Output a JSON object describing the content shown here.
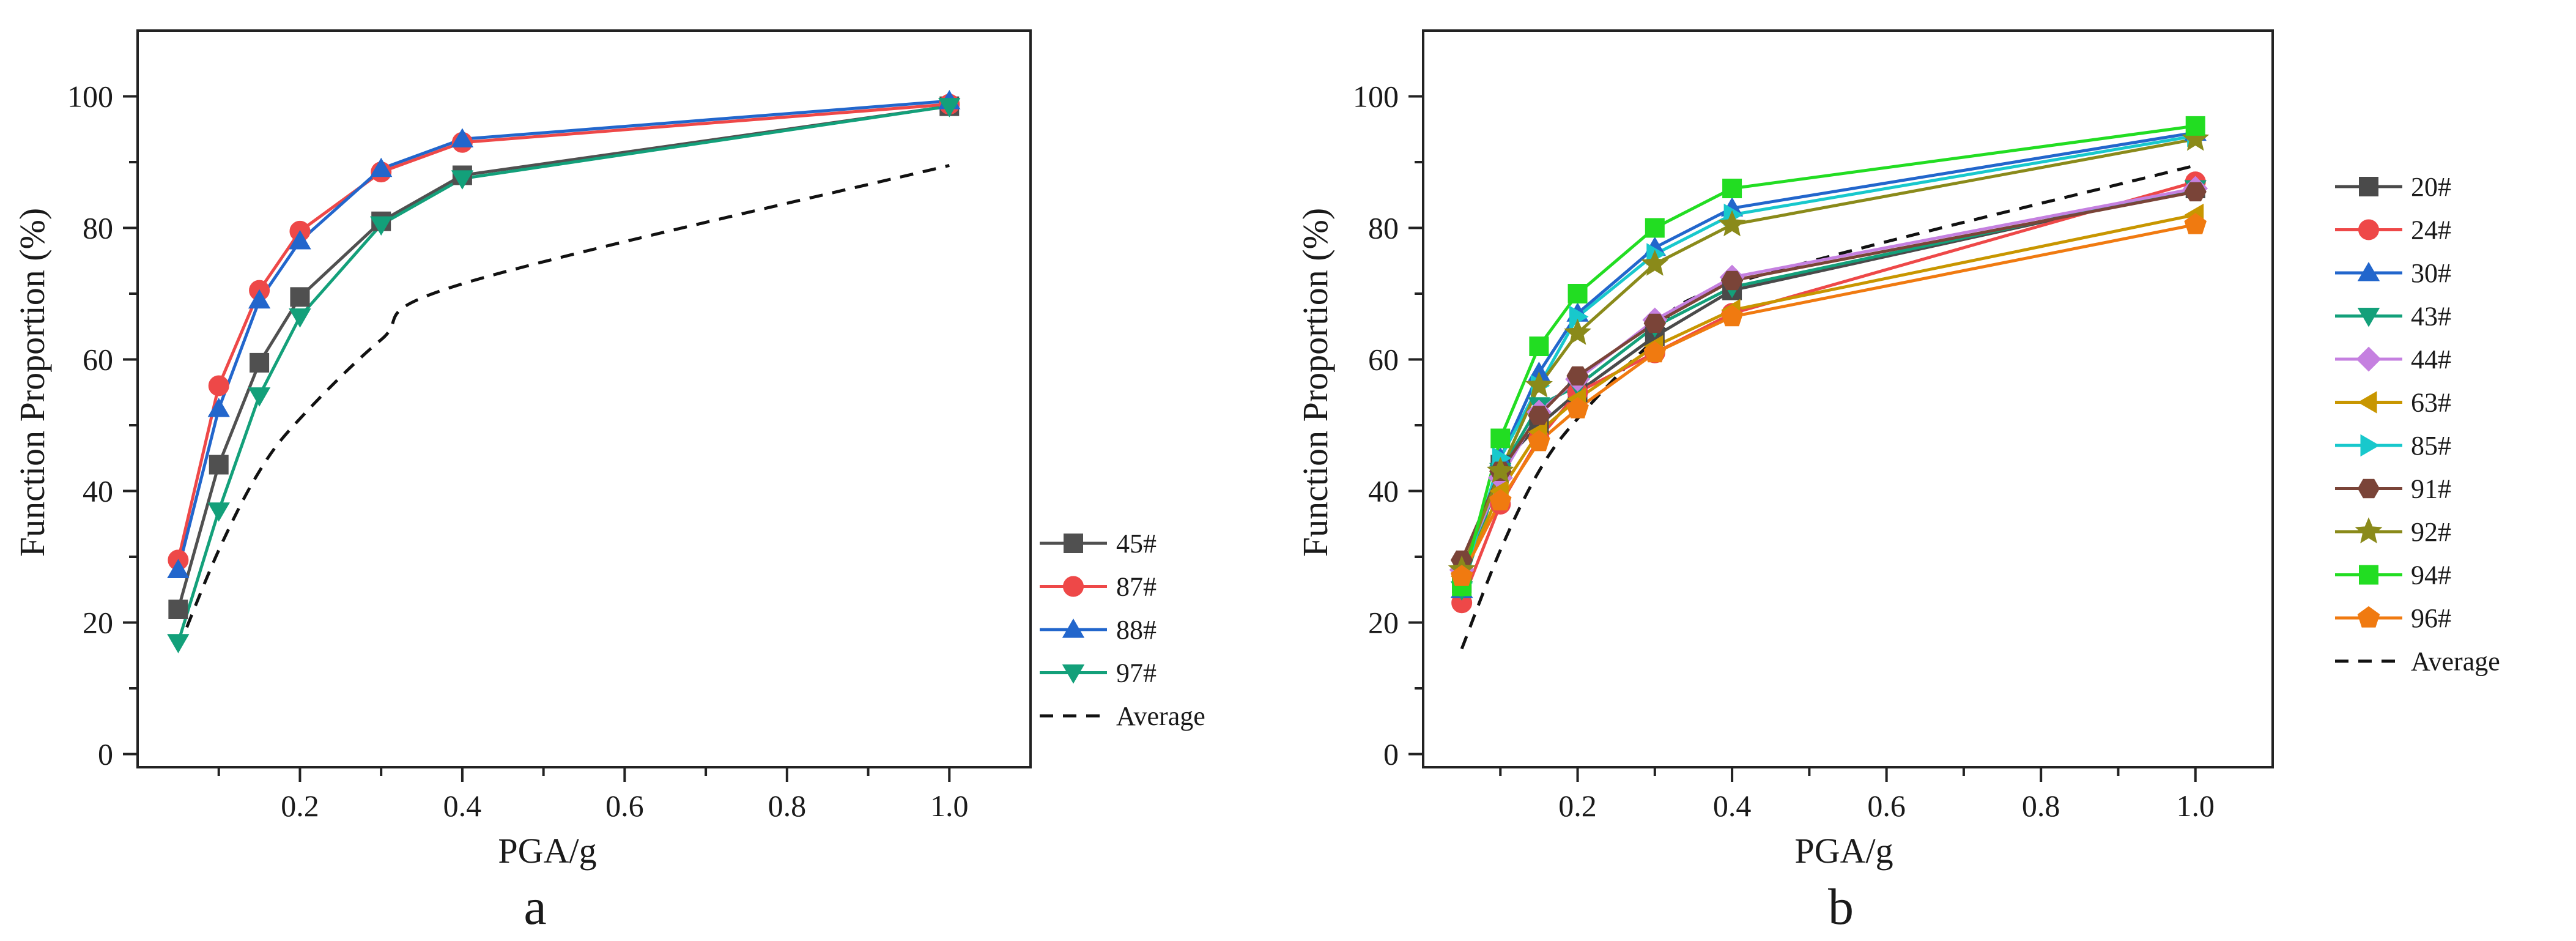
{
  "chart_data": [
    {
      "type": "line",
      "panel_label": "a",
      "xlabel": "PGA/g",
      "ylabel": "Function Proportion (%)",
      "xlim": [
        0,
        1.1
      ],
      "ylim": [
        -2,
        110
      ],
      "xticks": [
        0.2,
        0.4,
        0.6,
        0.8,
        1.0
      ],
      "xtick_labels": [
        "0.2",
        "0.4",
        "0.6",
        "0.8",
        "1.0"
      ],
      "yticks": [
        0,
        20,
        40,
        60,
        80,
        100
      ],
      "ytick_labels": [
        "0",
        "20",
        "40",
        "60",
        "80",
        "100"
      ],
      "grid": false,
      "legend_position": "right",
      "x": [
        0.05,
        0.1,
        0.15,
        0.2,
        0.3,
        0.4,
        1.0
      ],
      "series": [
        {
          "name": "45#",
          "color": "#505050",
          "marker": "square",
          "values": [
            22,
            44,
            59.5,
            69.5,
            81,
            88,
            98.5
          ]
        },
        {
          "name": "87#",
          "color": "#ee4848",
          "marker": "circle",
          "values": [
            29.5,
            56,
            70.5,
            79.5,
            88.5,
            93,
            98.8
          ]
        },
        {
          "name": "88#",
          "color": "#2266cc",
          "marker": "triangle-up",
          "values": [
            28,
            52.5,
            69,
            78,
            89,
            93.5,
            99.3
          ]
        },
        {
          "name": "97#",
          "color": "#13a07a",
          "marker": "triangle-down",
          "values": [
            17,
            37,
            54.5,
            66.5,
            80.5,
            87.5,
            98.5
          ]
        }
      ],
      "average": {
        "name": "Average",
        "color": "#111111",
        "style": "dashed",
        "x": [
          0.05,
          0.1,
          0.15,
          0.2,
          0.3,
          0.4,
          1.0
        ],
        "values": [
          16,
          31,
          43,
          51,
          63,
          71.5,
          89.5
        ]
      }
    },
    {
      "type": "line",
      "panel_label": "b",
      "xlabel": "PGA/g",
      "ylabel": "Function Proportion (%)",
      "xlim": [
        0,
        1.1
      ],
      "ylim": [
        -2,
        110
      ],
      "xticks": [
        0.2,
        0.4,
        0.6,
        0.8,
        1.0
      ],
      "xtick_labels": [
        "0.2",
        "0.4",
        "0.6",
        "0.8",
        "1.0"
      ],
      "yticks": [
        0,
        20,
        40,
        60,
        80,
        100
      ],
      "ytick_labels": [
        "0",
        "20",
        "40",
        "60",
        "80",
        "100"
      ],
      "grid": false,
      "legend_position": "right",
      "x": [
        0.05,
        0.1,
        0.15,
        0.2,
        0.3,
        0.4,
        1.0
      ],
      "series": [
        {
          "name": "20#",
          "color": "#4a4a4a",
          "marker": "square",
          "values": [
            26,
            44,
            50,
            55,
            63.5,
            70.5,
            86
          ]
        },
        {
          "name": "24#",
          "color": "#ee4848",
          "marker": "circle",
          "values": [
            23,
            38,
            48,
            55,
            61,
            67,
            87
          ]
        },
        {
          "name": "30#",
          "color": "#2266cc",
          "marker": "triangle-up",
          "values": [
            25,
            45,
            58,
            67,
            77,
            83,
            94.5
          ]
        },
        {
          "name": "43#",
          "color": "#13a07a",
          "marker": "triangle-down",
          "values": [
            25,
            43,
            53,
            56,
            65,
            71,
            86
          ]
        },
        {
          "name": "44#",
          "color": "#c580e0",
          "marker": "diamond",
          "values": [
            28,
            42,
            52,
            57,
            66,
            72.5,
            86
          ]
        },
        {
          "name": "63#",
          "color": "#c89600",
          "marker": "triangle-left",
          "values": [
            27,
            40,
            49,
            54,
            62,
            67.5,
            82
          ]
        },
        {
          "name": "85#",
          "color": "#18c8cc",
          "marker": "triangle-right",
          "values": [
            26,
            45,
            56,
            66.5,
            76,
            82,
            94
          ]
        },
        {
          "name": "91#",
          "color": "#7a4438",
          "marker": "hexagon",
          "values": [
            29.5,
            43,
            51.5,
            57.5,
            65.5,
            72,
            85.5
          ]
        },
        {
          "name": "92#",
          "color": "#8a8a1a",
          "marker": "star",
          "values": [
            28,
            43,
            56,
            64,
            74.5,
            80.5,
            93.5
          ]
        },
        {
          "name": "94#",
          "color": "#22dd22",
          "marker": "square",
          "values": [
            25.5,
            48,
            62,
            70,
            80,
            86,
            95.5
          ]
        },
        {
          "name": "96#",
          "color": "#f07a10",
          "marker": "pentagon",
          "values": [
            27,
            38.5,
            47.5,
            52.5,
            61,
            66.5,
            80.5
          ]
        }
      ],
      "average": {
        "name": "Average",
        "color": "#111111",
        "style": "dashed",
        "x": [
          0.05,
          0.1,
          0.15,
          0.2,
          0.3,
          0.4,
          1.0
        ],
        "values": [
          16,
          31,
          43,
          51,
          63,
          71.5,
          89.5
        ]
      }
    }
  ]
}
